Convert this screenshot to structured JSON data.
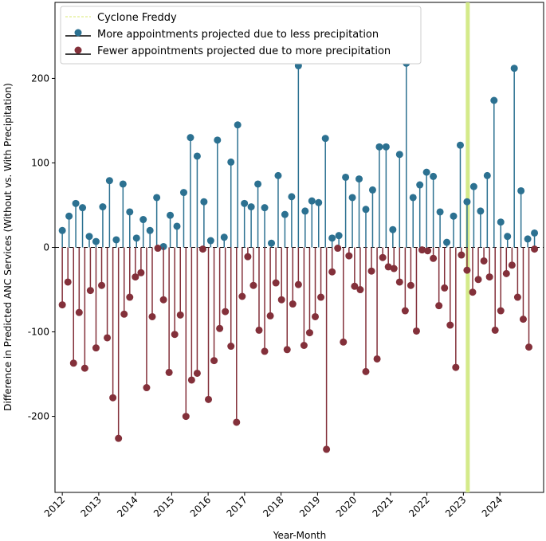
{
  "chart_data": {
    "type": "stem",
    "title": "",
    "xlabel": "Year-Month",
    "ylabel": "Difference in Predicted ANC Services (Without vs. With Precipitation)",
    "ylim": [
      -290,
      290
    ],
    "yticks": [
      -200,
      -100,
      0,
      100,
      200
    ],
    "xlim": [
      2011.8,
      2025.2
    ],
    "xticks": [
      "2012",
      "2013",
      "2014",
      "2015",
      "2016",
      "2017",
      "2018",
      "2019",
      "2020",
      "2021",
      "2022",
      "2023",
      "2024"
    ],
    "grid": false,
    "legend_position": "upper-left",
    "event": {
      "name": "Cyclone Freddy",
      "x": 2023.12,
      "color": "#d4ea8a"
    },
    "series": [
      {
        "name": "More appointments projected due to less precipitation",
        "color": "#2c7191",
        "values": [
          20,
          37,
          52,
          47,
          13,
          7,
          48,
          79,
          9,
          75,
          42,
          11,
          33,
          20,
          59,
          1,
          38,
          25,
          65,
          130,
          108,
          54,
          8,
          127,
          12,
          101,
          145,
          52,
          48,
          75,
          47,
          5,
          85,
          39,
          60,
          215,
          43,
          55,
          53,
          129,
          11,
          14,
          83,
          59,
          81,
          45,
          68,
          119,
          119,
          21,
          110,
          218,
          59,
          74,
          89,
          84,
          42,
          6,
          37,
          121,
          54,
          72,
          43,
          85,
          174,
          30,
          13,
          212,
          67,
          10,
          17
        ]
      },
      {
        "name": "Fewer appointments projected due to more precipitation",
        "color": "#83303a",
        "values": [
          -68,
          -41,
          -137,
          -77,
          -143,
          -51,
          -119,
          -45,
          -107,
          -178,
          -226,
          -79,
          -59,
          -35,
          -30,
          -166,
          -82,
          -1,
          -62,
          -148,
          -103,
          -80,
          -200,
          -157,
          -149,
          -2,
          -180,
          -134,
          -96,
          -76,
          -117,
          -207,
          -58,
          -11,
          -45,
          -98,
          -123,
          -81,
          -42,
          -62,
          -121,
          -67,
          -44,
          -116,
          -101,
          -82,
          -59,
          -239,
          -29,
          -1,
          -112,
          -10,
          -46,
          -50,
          -147,
          -28,
          -132,
          -12,
          -23,
          -25,
          -41,
          -75,
          -45,
          -99,
          -3,
          -4,
          -13,
          -69,
          -48,
          -92,
          -142,
          -9,
          -27,
          -53,
          -38,
          -16,
          -35,
          -98,
          -75,
          -31,
          -21,
          -59,
          -85,
          -118,
          -2
        ]
      }
    ]
  }
}
